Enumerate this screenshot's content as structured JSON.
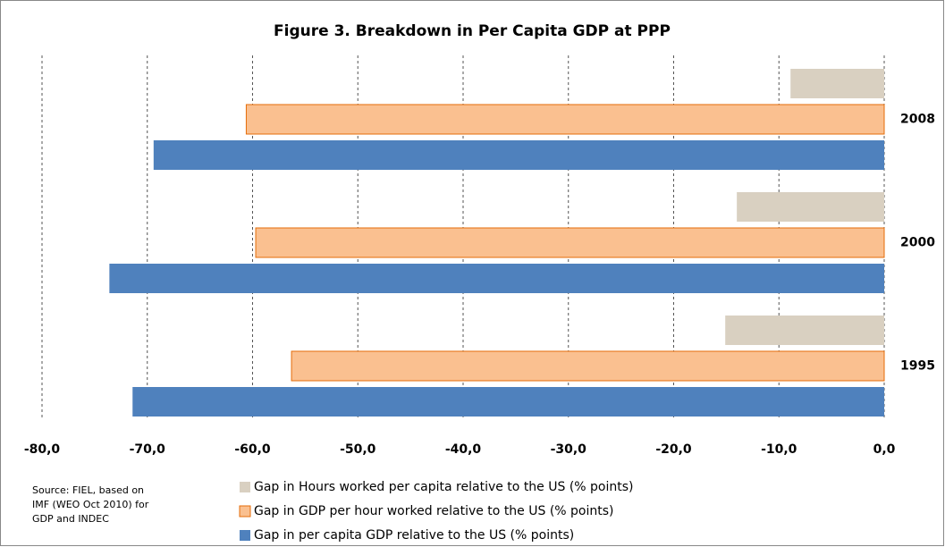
{
  "chart_data": {
    "type": "hbar",
    "title": "Figure 3. Breakdown in Per Capita GDP at PPP",
    "categories": [
      "2008",
      "2000",
      "1995"
    ],
    "series": [
      {
        "name": "Gap in Hours worked per capita relative to the US (% points)",
        "color": "#d9d0c1",
        "values": [
          -8.9,
          -14.0,
          -15.1
        ]
      },
      {
        "name": "Gap in GDP per hour worked relative to the US (% points)",
        "color": "#fac090",
        "values": [
          -60.6,
          -59.7,
          -56.3
        ]
      },
      {
        "name": "Gap in per capita GDP relative to the US (% points)",
        "color": "#4f81bd",
        "values": [
          -69.4,
          -73.6,
          -71.4
        ]
      }
    ],
    "xlim": [
      -80,
      0
    ],
    "xticks": [
      {
        "value": -80,
        "label": "-80,0"
      },
      {
        "value": -70,
        "label": "-70,0"
      },
      {
        "value": -60,
        "label": "-60,0"
      },
      {
        "value": -50,
        "label": "-50,0"
      },
      {
        "value": -40,
        "label": "-40,0"
      },
      {
        "value": -30,
        "label": "-30,0"
      },
      {
        "value": -20,
        "label": "-20,0"
      },
      {
        "value": -10,
        "label": "-10,0"
      },
      {
        "value": 0,
        "label": "0,0"
      }
    ],
    "grid": true,
    "source": [
      "Source: FIEL, based on",
      "IMF (WEO Oct 2010) for",
      "GDP and INDEC"
    ]
  }
}
